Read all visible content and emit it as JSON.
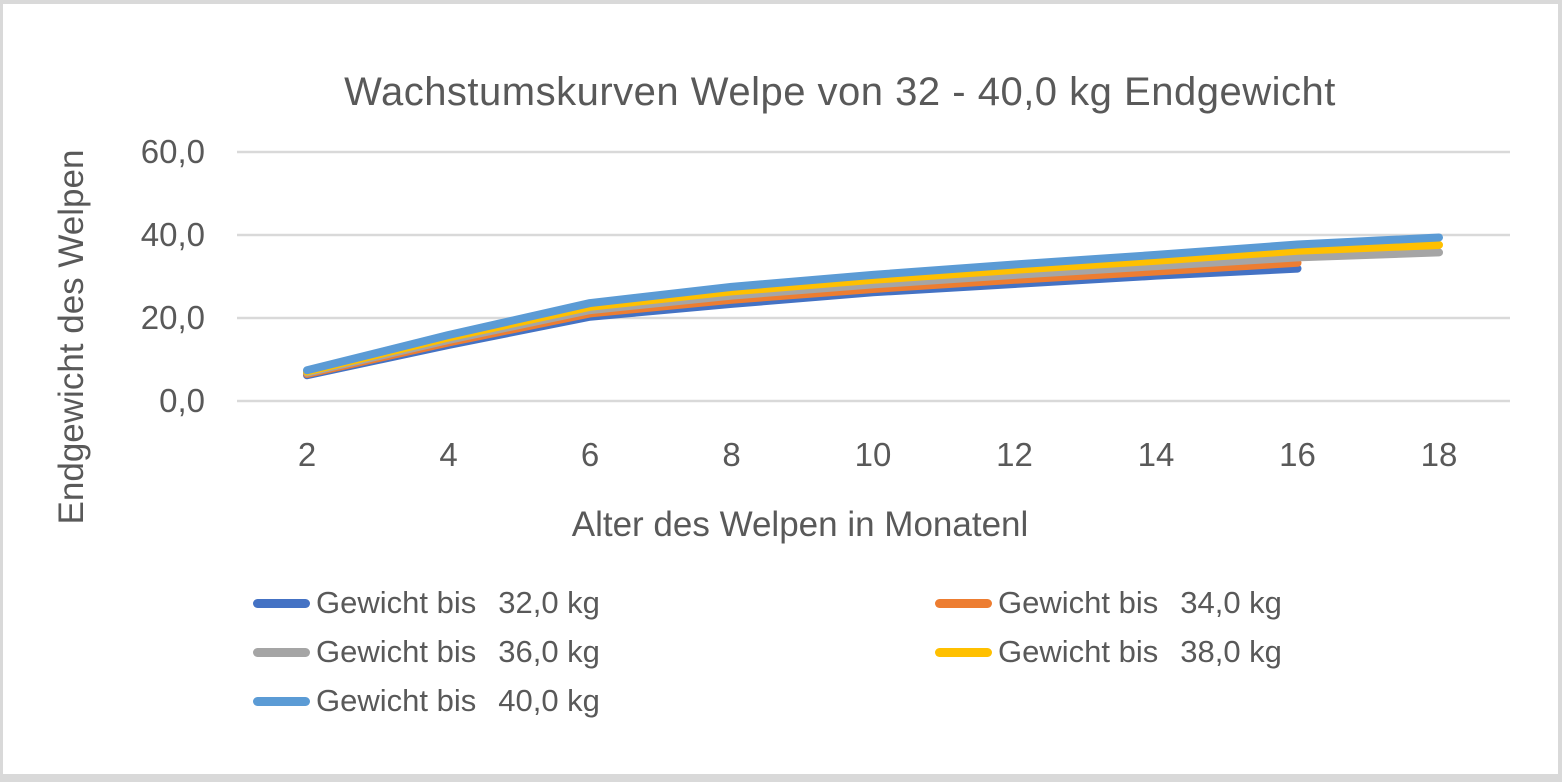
{
  "chart": {
    "title": "Wachstumskurven Welpe von 32 - 40,0 kg Endgewicht",
    "y_axis": {
      "title": "Endgewicht des Welpen",
      "ticks": [
        {
          "value": 0,
          "label": "0,0"
        },
        {
          "value": 20,
          "label": "20,0"
        },
        {
          "value": 40,
          "label": "40,0"
        },
        {
          "value": 60,
          "label": "60,0"
        }
      ]
    },
    "x_axis": {
      "title": "Alter des Welpen in Monatenl",
      "ticks": [
        {
          "value": 2,
          "label": "2"
        },
        {
          "value": 4,
          "label": "4"
        },
        {
          "value": 6,
          "label": "6"
        },
        {
          "value": 8,
          "label": "8"
        },
        {
          "value": 10,
          "label": "10"
        },
        {
          "value": 12,
          "label": "12"
        },
        {
          "value": 14,
          "label": "14"
        },
        {
          "value": 16,
          "label": "16"
        },
        {
          "value": 18,
          "label": "18"
        }
      ]
    },
    "legend": [
      {
        "label": "Gewicht bis",
        "value": "32,0 kg",
        "color": "#4472C4"
      },
      {
        "label": "Gewicht bis",
        "value": "34,0 kg",
        "color": "#ED7D31"
      },
      {
        "label": "Gewicht bis",
        "value": "36,0 kg",
        "color": "#A5A5A5"
      },
      {
        "label": "Gewicht bis",
        "value": "38,0 kg",
        "color": "#FFC000"
      },
      {
        "label": "Gewicht bis",
        "value": "40,0 kg",
        "color": "#5B9BD5"
      }
    ],
    "colors": {
      "text": "#595959",
      "gridline": "#D9D9D9",
      "frame_border": "#D9D9D9",
      "background": "#FFFFFF"
    }
  },
  "chart_data": {
    "type": "line",
    "title": "Wachstumskurven Welpe von 32 - 40,0 kg Endgewicht",
    "xlabel": "Alter des Welpen in Monatenl",
    "ylabel": "Endgewicht des Welpen",
    "xlim": [
      2,
      18
    ],
    "ylim": [
      0,
      60
    ],
    "x_ticks": [
      2,
      4,
      6,
      8,
      10,
      12,
      14,
      16,
      18
    ],
    "y_ticks": [
      0,
      20,
      40,
      60
    ],
    "grid": "horizontal",
    "legend_position": "bottom",
    "line_style": {
      "width": 8,
      "cap": "round"
    },
    "series": [
      {
        "name": "Gewicht bis  32,0 kg",
        "color": "#4472C4",
        "x": [
          2,
          4,
          6,
          8,
          10,
          12,
          14,
          16
        ],
        "y": [
          6.2,
          13.5,
          20.3,
          23.4,
          26.2,
          28.2,
          30.2,
          31.9
        ]
      },
      {
        "name": "Gewicht bis  34,0 kg",
        "color": "#ED7D31",
        "x": [
          2,
          4,
          6,
          8,
          10,
          12,
          14,
          16
        ],
        "y": [
          6.5,
          14.1,
          21.1,
          24.4,
          27.0,
          29.2,
          31.2,
          33.3
        ]
      },
      {
        "name": "Gewicht bis  36,0 kg",
        "color": "#A5A5A5",
        "x": [
          2,
          4,
          6,
          8,
          10,
          12,
          14,
          16,
          18
        ],
        "y": [
          6.8,
          14.7,
          21.9,
          25.4,
          28.1,
          30.4,
          32.5,
          34.6,
          35.8
        ]
      },
      {
        "name": "Gewicht bis  38,0 kg",
        "color": "#FFC000",
        "x": [
          2,
          4,
          6,
          8,
          10,
          12,
          14,
          16,
          18
        ],
        "y": [
          7.1,
          15.3,
          22.7,
          26.4,
          29.2,
          31.6,
          33.8,
          36.2,
          37.6
        ]
      },
      {
        "name": "Gewicht bis  40,0 kg",
        "color": "#5B9BD5",
        "x": [
          2,
          4,
          6,
          8,
          10,
          12,
          14,
          16,
          18
        ],
        "y": [
          7.4,
          15.9,
          23.6,
          27.5,
          30.4,
          32.9,
          35.2,
          37.7,
          39.4
        ]
      }
    ]
  }
}
